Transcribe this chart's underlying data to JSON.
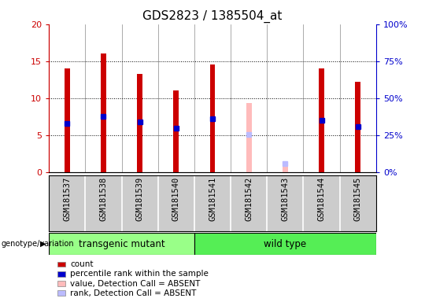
{
  "title": "GDS2823 / 1385504_at",
  "samples": [
    "GSM181537",
    "GSM181538",
    "GSM181539",
    "GSM181540",
    "GSM181541",
    "GSM181542",
    "GSM181543",
    "GSM181544",
    "GSM181545"
  ],
  "count_values": [
    14.0,
    16.0,
    13.3,
    11.0,
    14.5,
    null,
    null,
    14.0,
    12.2
  ],
  "rank_values": [
    6.6,
    7.5,
    6.8,
    5.9,
    7.2,
    null,
    null,
    7.0,
    6.2
  ],
  "absent_value_values": [
    null,
    null,
    null,
    null,
    null,
    9.3,
    1.1,
    null,
    null
  ],
  "absent_rank_values": [
    null,
    null,
    null,
    null,
    null,
    5.1,
    1.2,
    null,
    null
  ],
  "groups": [
    {
      "label": "transgenic mutant",
      "start": 0,
      "end": 3,
      "color": "#99ff88"
    },
    {
      "label": "wild type",
      "start": 4,
      "end": 8,
      "color": "#55ee55"
    }
  ],
  "ylim_left": [
    0,
    20
  ],
  "ylim_right": [
    0,
    100
  ],
  "yticks_left": [
    0,
    5,
    10,
    15,
    20
  ],
  "yticks_right": [
    0,
    25,
    50,
    75,
    100
  ],
  "ytick_labels_left": [
    "0",
    "5",
    "10",
    "15",
    "20"
  ],
  "ytick_labels_right": [
    "0%",
    "25%",
    "50%",
    "75%",
    "100%"
  ],
  "bar_color_count": "#cc0000",
  "bar_color_rank": "#0000cc",
  "bar_color_absent_value": "#ffbbbb",
  "bar_color_absent_rank": "#bbbbff",
  "bar_width": 0.15,
  "plot_bg_color": "#ffffff",
  "xtick_bg_color": "#cccccc",
  "legend_items": [
    {
      "color": "#cc0000",
      "label": "count"
    },
    {
      "color": "#0000cc",
      "label": "percentile rank within the sample"
    },
    {
      "color": "#ffbbbb",
      "label": "value, Detection Call = ABSENT"
    },
    {
      "color": "#bbbbff",
      "label": "rank, Detection Call = ABSENT"
    }
  ],
  "genotype_label": "genotype/variation",
  "title_fontsize": 11,
  "axis_fontsize": 7.5,
  "tick_fontsize": 8
}
